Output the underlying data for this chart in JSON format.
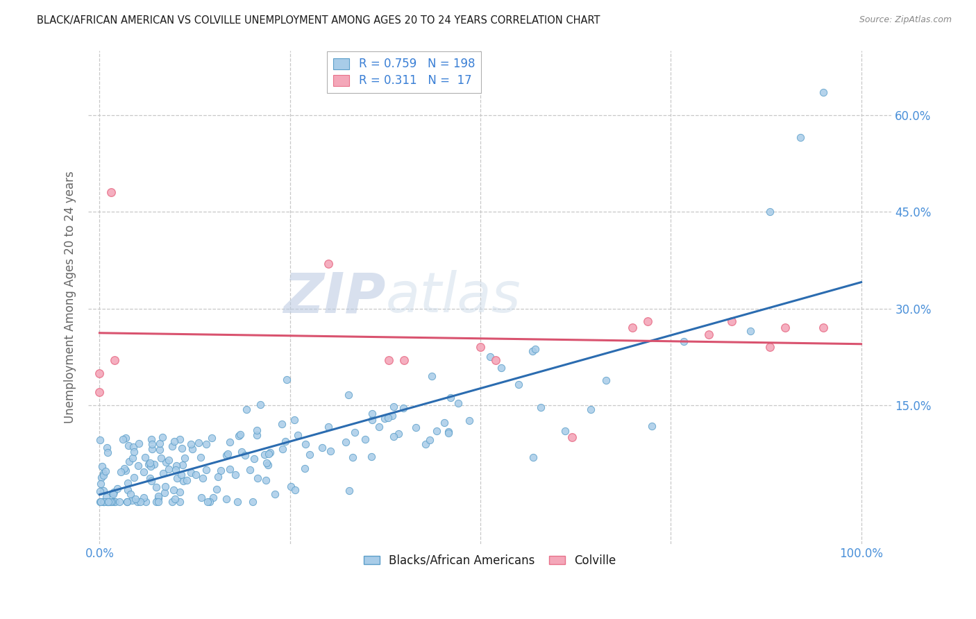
{
  "title": "BLACK/AFRICAN AMERICAN VS COLVILLE UNEMPLOYMENT AMONG AGES 20 TO 24 YEARS CORRELATION CHART",
  "source": "Source: ZipAtlas.com",
  "ylabel_label": "Unemployment Among Ages 20 to 24 years",
  "legend_labels": [
    "Blacks/African Americans",
    "Colville"
  ],
  "blue_R": 0.759,
  "blue_N": 198,
  "pink_R": 0.311,
  "pink_N": 17,
  "blue_color": "#a8cce8",
  "pink_color": "#f4a7b9",
  "blue_edge_color": "#5b9ec9",
  "pink_edge_color": "#e8718a",
  "blue_line_color": "#2b6cb0",
  "pink_line_color": "#d9536f",
  "watermark_color": "#d0d8e8",
  "background_color": "#ffffff",
  "grid_color": "#c8c8c8",
  "title_color": "#1a1a1a",
  "tick_label_color": "#4a90d9",
  "axis_label_color": "#666666",
  "legend_text_color": "#3a7fd5",
  "seed": 7,
  "xlim": [
    -0.015,
    1.04
  ],
  "ylim": [
    -0.065,
    0.7
  ]
}
